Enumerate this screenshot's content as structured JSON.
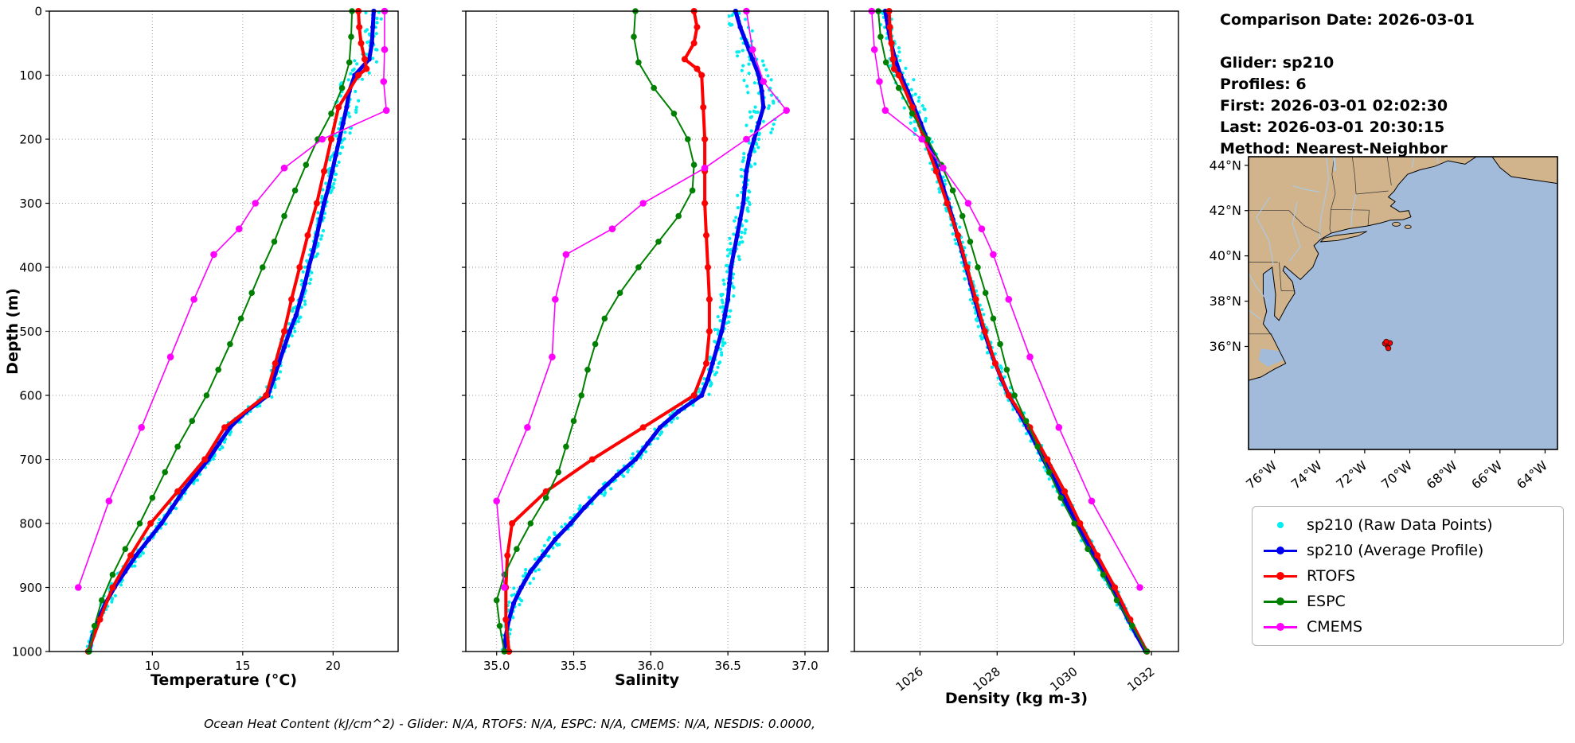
{
  "info_panel": {
    "comparison_date_line": "Comparison Date: 2026-03-01",
    "lines": [
      "Glider: sp210",
      "Profiles: 6",
      "First: 2026-03-01 02:02:30",
      "Last: 2026-03-01 20:30:15",
      "Method: Nearest-Neighbor"
    ]
  },
  "footer": {
    "text": "Ocean Heat Content (kJ/cm^2) - Glider: N/A,  RTOFS: N/A,  ESPC: N/A,  CMEMS: N/A,  NESDIS: 0.0000,"
  },
  "legend": {
    "items": [
      {
        "label": "sp210 (Raw Data Points)",
        "color": "#00eeee",
        "marker": "dot"
      },
      {
        "label": "sp210 (Average Profile)",
        "color": "#0000ee",
        "marker": "line-dot"
      },
      {
        "label": "RTOFS",
        "color": "#ff0000",
        "marker": "line-dot"
      },
      {
        "label": "ESPC",
        "color": "#008000",
        "marker": "line-dot"
      },
      {
        "label": "CMEMS",
        "color": "#ff00ff",
        "marker": "line-dot"
      }
    ]
  },
  "map": {
    "land_color": "#d2b48c",
    "ocean_color": "#a2bbda",
    "river_color": "#a9cbe8",
    "border_color": "#000000",
    "lat_tick_labels": [
      "44°N",
      "42°N",
      "40°N",
      "38°N",
      "36°N"
    ],
    "lat_tick_values": [
      44,
      42,
      40,
      38,
      36
    ],
    "lon_tick_labels": [
      "76°W",
      "74°W",
      "72°W",
      "70°W",
      "68°W",
      "66°W",
      "64°W"
    ],
    "lon_tick_values": [
      -76,
      -74,
      -72,
      -70,
      -68,
      -66,
      -64
    ],
    "extent": {
      "lon_min": -77.15,
      "lon_max": -63.45,
      "lat_min": 31.45,
      "lat_max": 44.38
    },
    "glider_marker": {
      "lon": -71.0,
      "lat": 36.05,
      "color": "#ff0000",
      "edge": "#301010"
    }
  },
  "chart_data": {
    "type": "line",
    "ylabel": "Depth (m)",
    "ylim": [
      0,
      1000
    ],
    "yticks": [
      0,
      100,
      200,
      300,
      400,
      500,
      600,
      700,
      800,
      900,
      1000
    ],
    "plots": [
      {
        "key": "temperature",
        "xlabel": "Temperature (°C)",
        "xlim": [
          4.3,
          23.6
        ],
        "xticks": [
          10,
          15,
          20
        ],
        "xtick_labels": [
          "10",
          "15",
          "20"
        ],
        "rotate_xticks": false
      },
      {
        "key": "salinity",
        "xlabel": "Salinity",
        "xlim": [
          34.8,
          37.15
        ],
        "xticks": [
          35.0,
          35.5,
          36.0,
          36.5,
          37.0
        ],
        "xtick_labels": [
          "35.0",
          "35.5",
          "36.0",
          "36.5",
          "37.0"
        ],
        "rotate_xticks": false
      },
      {
        "key": "density",
        "xlabel": "Density (kg m-3)",
        "xlim": [
          1024.3,
          1032.7
        ],
        "xticks": [
          1026,
          1028,
          1030,
          1032
        ],
        "xtick_labels": [
          "1026",
          "1028",
          "1030",
          "1032"
        ],
        "rotate_xticks": true
      }
    ],
    "series": [
      {
        "name": "sp210 (Average Profile)",
        "color": "#0000ee",
        "depths": [
          0,
          25,
          50,
          75,
          100,
          125,
          150,
          175,
          200,
          225,
          250,
          275,
          300,
          325,
          350,
          375,
          400,
          425,
          450,
          475,
          500,
          525,
          550,
          575,
          600,
          625,
          650,
          675,
          700,
          725,
          750,
          775,
          800,
          825,
          850,
          875,
          900,
          925,
          950,
          975,
          1000
        ],
        "temperature": [
          22.25,
          22.2,
          22.15,
          22.0,
          21.2,
          20.9,
          20.75,
          20.55,
          20.35,
          20.15,
          19.95,
          19.75,
          19.5,
          19.3,
          19.1,
          18.9,
          18.65,
          18.45,
          18.2,
          17.95,
          17.6,
          17.3,
          17.0,
          16.7,
          16.4,
          15.2,
          14.3,
          13.7,
          13.1,
          12.4,
          11.7,
          11.1,
          10.5,
          9.8,
          9.1,
          8.5,
          7.9,
          7.4,
          7.0,
          6.7,
          6.5
        ],
        "salinity": [
          36.55,
          36.58,
          36.62,
          36.66,
          36.7,
          36.72,
          36.73,
          36.7,
          36.67,
          36.64,
          36.62,
          36.61,
          36.6,
          36.58,
          36.56,
          36.54,
          36.52,
          36.51,
          36.5,
          36.48,
          36.46,
          36.43,
          36.4,
          36.37,
          36.33,
          36.18,
          36.06,
          35.98,
          35.9,
          35.78,
          35.67,
          35.57,
          35.48,
          35.38,
          35.3,
          35.22,
          35.16,
          35.11,
          35.08,
          35.06,
          35.05
        ],
        "density": [
          1025.1,
          1025.17,
          1025.25,
          1025.36,
          1025.5,
          1025.68,
          1025.85,
          1026.02,
          1026.18,
          1026.33,
          1026.47,
          1026.6,
          1026.73,
          1026.85,
          1026.97,
          1027.09,
          1027.2,
          1027.31,
          1027.42,
          1027.54,
          1027.66,
          1027.8,
          1027.95,
          1028.12,
          1028.3,
          1028.55,
          1028.78,
          1029.0,
          1029.2,
          1029.42,
          1029.64,
          1029.86,
          1030.08,
          1030.3,
          1030.52,
          1030.74,
          1030.96,
          1031.18,
          1031.4,
          1031.62,
          1031.85
        ]
      },
      {
        "name": "RTOFS",
        "color": "#ff0000",
        "depths": [
          0,
          25,
          50,
          75,
          90,
          100,
          150,
          200,
          250,
          300,
          350,
          400,
          450,
          500,
          550,
          600,
          650,
          700,
          750,
          800,
          850,
          900,
          950,
          1000
        ],
        "temperature": [
          21.4,
          21.45,
          21.55,
          21.75,
          21.85,
          21.4,
          20.3,
          19.9,
          19.5,
          19.1,
          18.6,
          18.15,
          17.7,
          17.3,
          16.8,
          16.3,
          14.0,
          12.9,
          11.4,
          9.9,
          8.8,
          7.8,
          7.1,
          6.45
        ],
        "salinity": [
          36.28,
          36.3,
          36.28,
          36.22,
          36.3,
          36.33,
          36.34,
          36.35,
          36.35,
          36.35,
          36.36,
          36.37,
          36.38,
          36.38,
          36.36,
          36.28,
          35.95,
          35.62,
          35.32,
          35.1,
          35.07,
          35.06,
          35.06,
          35.08
        ],
        "density": [
          1025.2,
          1025.22,
          1025.26,
          1025.3,
          1025.33,
          1025.45,
          1025.8,
          1026.12,
          1026.42,
          1026.7,
          1026.98,
          1027.22,
          1027.45,
          1027.68,
          1027.95,
          1028.3,
          1028.85,
          1029.3,
          1029.75,
          1030.15,
          1030.6,
          1031.05,
          1031.45,
          1031.88
        ]
      },
      {
        "name": "ESPC",
        "color": "#008000",
        "depths": [
          0,
          40,
          80,
          120,
          160,
          200,
          240,
          280,
          320,
          360,
          400,
          440,
          480,
          520,
          560,
          600,
          640,
          680,
          720,
          760,
          800,
          840,
          880,
          920,
          960,
          1000
        ],
        "temperature": [
          21.05,
          21.0,
          20.9,
          20.5,
          19.9,
          19.15,
          18.5,
          17.9,
          17.3,
          16.75,
          16.1,
          15.5,
          14.9,
          14.3,
          13.65,
          13.0,
          12.2,
          11.4,
          10.7,
          10.0,
          9.3,
          8.5,
          7.8,
          7.2,
          6.8,
          6.5
        ],
        "salinity": [
          35.9,
          35.89,
          35.92,
          36.02,
          36.15,
          36.24,
          36.28,
          36.27,
          36.18,
          36.05,
          35.92,
          35.8,
          35.7,
          35.64,
          35.59,
          35.55,
          35.5,
          35.45,
          35.4,
          35.32,
          35.22,
          35.13,
          35.05,
          35.0,
          35.02,
          35.05
        ],
        "density": [
          1024.92,
          1024.98,
          1025.12,
          1025.45,
          1025.8,
          1026.2,
          1026.55,
          1026.85,
          1027.1,
          1027.3,
          1027.5,
          1027.7,
          1027.9,
          1028.08,
          1028.25,
          1028.45,
          1028.75,
          1029.05,
          1029.35,
          1029.65,
          1030.0,
          1030.35,
          1030.75,
          1031.1,
          1031.5,
          1031.88
        ]
      },
      {
        "name": "CMEMS",
        "color": "#ff00ff",
        "depths": [
          0,
          60,
          110,
          155,
          200,
          245,
          300,
          340,
          380,
          450,
          540,
          650,
          765,
          900
        ],
        "temperature": [
          22.85,
          22.85,
          22.8,
          22.95,
          19.4,
          17.3,
          15.7,
          14.8,
          13.4,
          12.3,
          11.0,
          9.4,
          7.6,
          5.9
        ],
        "salinity": [
          36.62,
          36.66,
          36.73,
          36.88,
          36.62,
          36.35,
          35.95,
          35.75,
          35.45,
          35.38,
          35.36,
          35.2,
          35.0,
          35.05
        ],
        "density": [
          1024.75,
          1024.82,
          1024.95,
          1025.1,
          1026.05,
          1026.6,
          1027.25,
          1027.6,
          1027.9,
          1028.3,
          1028.85,
          1029.6,
          1030.45,
          1031.7
        ]
      }
    ],
    "raw": {
      "name": "sp210 (Raw Data Points)",
      "color": "#00eeee",
      "basis": "sp210 (Average Profile)",
      "depth_step": 5,
      "per_depth": 2,
      "jitter": {
        "temperature": 0.3,
        "salinity": 0.05,
        "density": 0.12
      }
    }
  }
}
